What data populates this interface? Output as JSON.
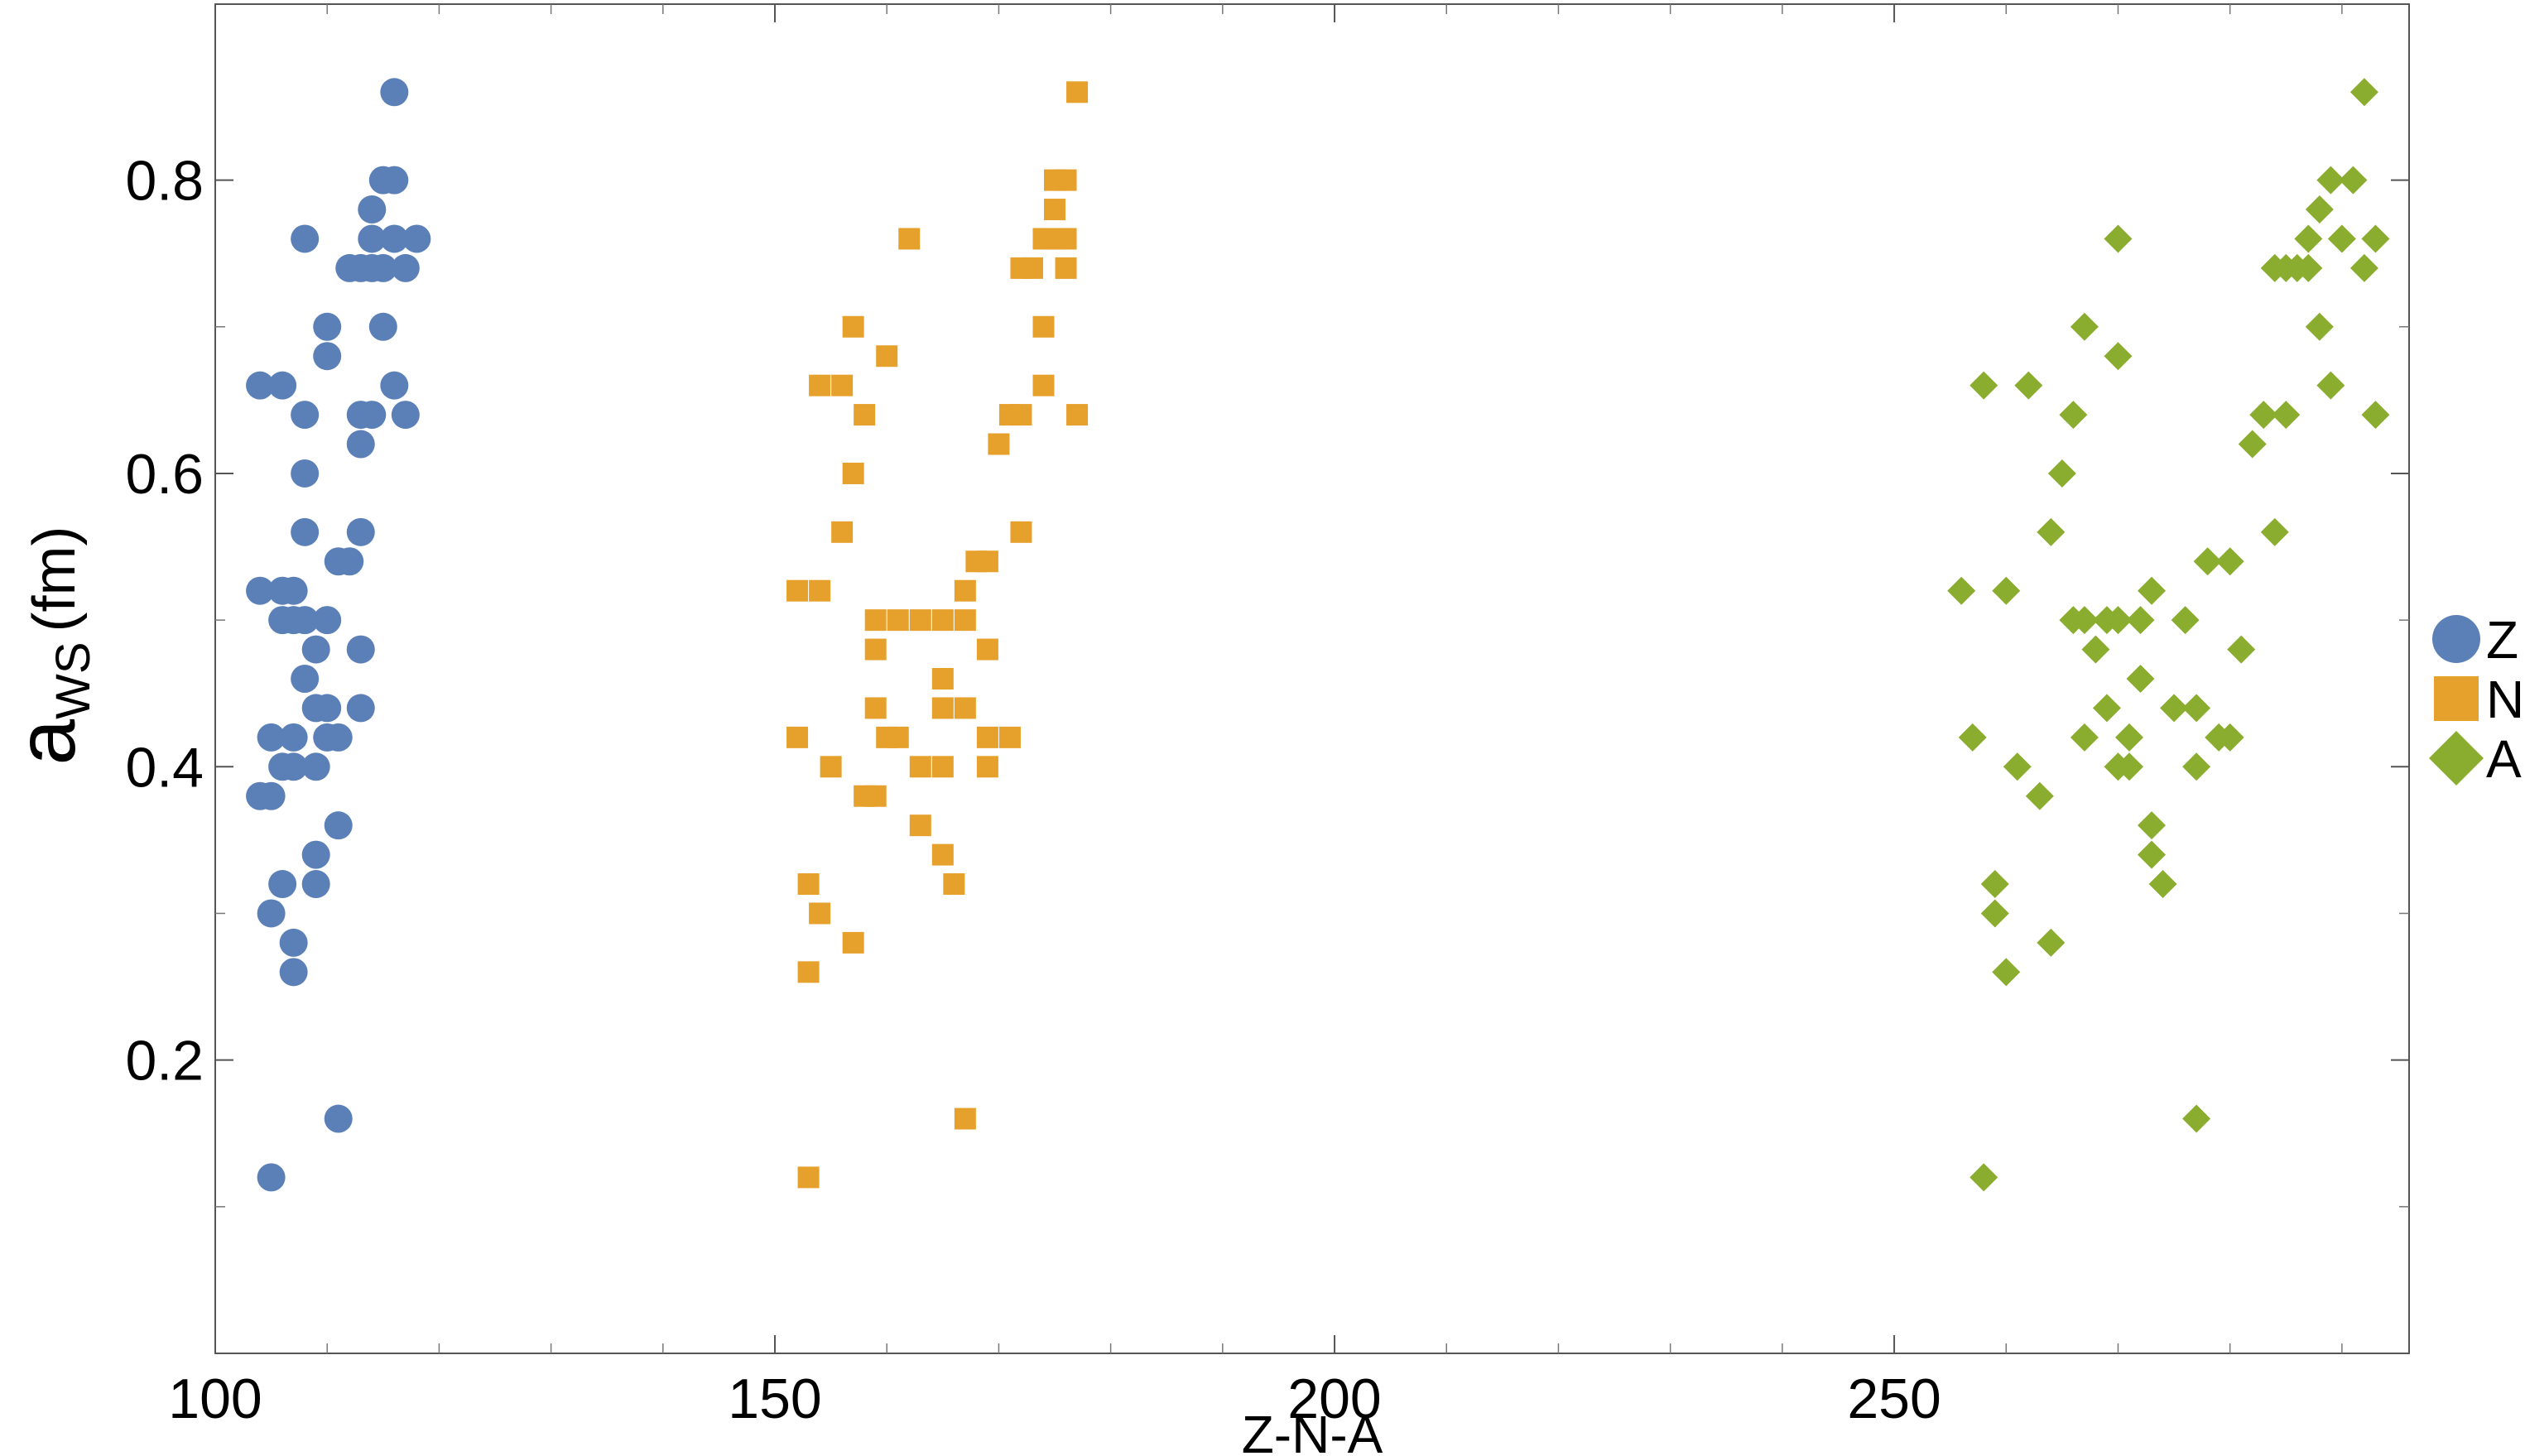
{
  "chart_data": {
    "type": "scatter",
    "title": "",
    "xlabel": "Z-N-A",
    "ylabel": {
      "main": "a",
      "sub": "WS",
      "unit": "(fm)"
    },
    "xlim": [
      100,
      296
    ],
    "ylim": [
      0,
      0.92
    ],
    "x_ticks": [
      100,
      150,
      200,
      250
    ],
    "x_minor_ticks": [
      110,
      120,
      130,
      140,
      160,
      170,
      180,
      190,
      210,
      220,
      230,
      240,
      260,
      270,
      280,
      290
    ],
    "y_ticks": [
      0.2,
      0.4,
      0.6,
      0.8
    ],
    "y_minor_ticks": [
      0.1,
      0.3,
      0.5,
      0.7
    ],
    "grid": false,
    "legend_position": "right",
    "series": [
      {
        "name": "Z",
        "color": "#5b80b8",
        "marker": "circle",
        "points": [
          [
            104,
            0.66
          ],
          [
            104,
            0.52
          ],
          [
            104,
            0.38
          ],
          [
            105,
            0.42
          ],
          [
            105,
            0.38
          ],
          [
            105,
            0.3
          ],
          [
            105,
            0.12
          ],
          [
            106,
            0.66
          ],
          [
            106,
            0.52
          ],
          [
            106,
            0.5
          ],
          [
            106,
            0.4
          ],
          [
            106,
            0.32
          ],
          [
            107,
            0.52
          ],
          [
            107,
            0.5
          ],
          [
            107,
            0.42
          ],
          [
            107,
            0.4
          ],
          [
            107,
            0.28
          ],
          [
            107,
            0.26
          ],
          [
            108,
            0.76
          ],
          [
            108,
            0.64
          ],
          [
            108,
            0.6
          ],
          [
            108,
            0.56
          ],
          [
            108,
            0.5
          ],
          [
            108,
            0.46
          ],
          [
            109,
            0.48
          ],
          [
            109,
            0.44
          ],
          [
            109,
            0.4
          ],
          [
            109,
            0.34
          ],
          [
            109,
            0.32
          ],
          [
            110,
            0.7
          ],
          [
            110,
            0.68
          ],
          [
            110,
            0.5
          ],
          [
            110,
            0.44
          ],
          [
            110,
            0.42
          ],
          [
            111,
            0.54
          ],
          [
            111,
            0.42
          ],
          [
            111,
            0.36
          ],
          [
            111,
            0.16
          ],
          [
            112,
            0.74
          ],
          [
            112,
            0.54
          ],
          [
            113,
            0.74
          ],
          [
            113,
            0.64
          ],
          [
            113,
            0.62
          ],
          [
            113,
            0.56
          ],
          [
            113,
            0.48
          ],
          [
            113,
            0.44
          ],
          [
            114,
            0.78
          ],
          [
            114,
            0.76
          ],
          [
            114,
            0.74
          ],
          [
            114,
            0.64
          ],
          [
            115,
            0.8
          ],
          [
            115,
            0.74
          ],
          [
            115,
            0.7
          ],
          [
            116,
            0.86
          ],
          [
            116,
            0.8
          ],
          [
            116,
            0.76
          ],
          [
            116,
            0.66
          ],
          [
            117,
            0.74
          ],
          [
            117,
            0.64
          ],
          [
            118,
            0.76
          ]
        ]
      },
      {
        "name": "N",
        "color": "#e6a02c",
        "marker": "square",
        "points": [
          [
            152,
            0.52
          ],
          [
            152,
            0.42
          ],
          [
            153,
            0.32
          ],
          [
            153,
            0.26
          ],
          [
            153,
            0.12
          ],
          [
            154,
            0.66
          ],
          [
            154,
            0.52
          ],
          [
            154,
            0.3
          ],
          [
            155,
            0.4
          ],
          [
            156,
            0.66
          ],
          [
            156,
            0.56
          ],
          [
            157,
            0.7
          ],
          [
            157,
            0.6
          ],
          [
            157,
            0.28
          ],
          [
            158,
            0.64
          ],
          [
            158,
            0.38
          ],
          [
            159,
            0.5
          ],
          [
            159,
            0.48
          ],
          [
            159,
            0.44
          ],
          [
            159,
            0.38
          ],
          [
            160,
            0.68
          ],
          [
            160,
            0.42
          ],
          [
            161,
            0.5
          ],
          [
            161,
            0.42
          ],
          [
            162,
            0.76
          ],
          [
            163,
            0.5
          ],
          [
            163,
            0.4
          ],
          [
            163,
            0.36
          ],
          [
            165,
            0.5
          ],
          [
            165,
            0.46
          ],
          [
            165,
            0.44
          ],
          [
            165,
            0.4
          ],
          [
            165,
            0.34
          ],
          [
            166,
            0.32
          ],
          [
            167,
            0.52
          ],
          [
            167,
            0.5
          ],
          [
            167,
            0.44
          ],
          [
            167,
            0.16
          ],
          [
            168,
            0.54
          ],
          [
            169,
            0.54
          ],
          [
            169,
            0.48
          ],
          [
            169,
            0.42
          ],
          [
            169,
            0.4
          ],
          [
            170,
            0.62
          ],
          [
            171,
            0.64
          ],
          [
            171,
            0.42
          ],
          [
            172,
            0.74
          ],
          [
            172,
            0.64
          ],
          [
            172,
            0.56
          ],
          [
            173,
            0.74
          ],
          [
            174,
            0.76
          ],
          [
            174,
            0.7
          ],
          [
            174,
            0.66
          ],
          [
            175,
            0.8
          ],
          [
            175,
            0.78
          ],
          [
            175,
            0.76
          ],
          [
            176,
            0.8
          ],
          [
            176,
            0.76
          ],
          [
            176,
            0.74
          ],
          [
            177,
            0.86
          ],
          [
            177,
            0.64
          ]
        ]
      },
      {
        "name": "A",
        "color": "#8bad2f",
        "marker": "diamond",
        "points": [
          [
            256,
            0.52
          ],
          [
            257,
            0.42
          ],
          [
            258,
            0.66
          ],
          [
            258,
            0.12
          ],
          [
            259,
            0.32
          ],
          [
            259,
            0.3
          ],
          [
            260,
            0.52
          ],
          [
            260,
            0.26
          ],
          [
            261,
            0.4
          ],
          [
            262,
            0.66
          ],
          [
            263,
            0.38
          ],
          [
            264,
            0.56
          ],
          [
            264,
            0.28
          ],
          [
            265,
            0.6
          ],
          [
            266,
            0.64
          ],
          [
            266,
            0.5
          ],
          [
            267,
            0.7
          ],
          [
            267,
            0.5
          ],
          [
            267,
            0.42
          ],
          [
            268,
            0.48
          ],
          [
            269,
            0.5
          ],
          [
            269,
            0.44
          ],
          [
            270,
            0.76
          ],
          [
            270,
            0.68
          ],
          [
            270,
            0.5
          ],
          [
            270,
            0.4
          ],
          [
            271,
            0.42
          ],
          [
            271,
            0.4
          ],
          [
            272,
            0.5
          ],
          [
            272,
            0.46
          ],
          [
            273,
            0.52
          ],
          [
            273,
            0.36
          ],
          [
            273,
            0.34
          ],
          [
            274,
            0.32
          ],
          [
            275,
            0.44
          ],
          [
            276,
            0.5
          ],
          [
            277,
            0.44
          ],
          [
            277,
            0.4
          ],
          [
            277,
            0.16
          ],
          [
            278,
            0.54
          ],
          [
            279,
            0.42
          ],
          [
            280,
            0.54
          ],
          [
            280,
            0.42
          ],
          [
            281,
            0.48
          ],
          [
            282,
            0.62
          ],
          [
            283,
            0.64
          ],
          [
            284,
            0.74
          ],
          [
            284,
            0.56
          ],
          [
            285,
            0.74
          ],
          [
            285,
            0.64
          ],
          [
            286,
            0.74
          ],
          [
            287,
            0.76
          ],
          [
            287,
            0.74
          ],
          [
            288,
            0.78
          ],
          [
            288,
            0.7
          ],
          [
            289,
            0.8
          ],
          [
            289,
            0.66
          ],
          [
            290,
            0.76
          ],
          [
            291,
            0.8
          ],
          [
            292,
            0.86
          ],
          [
            292,
            0.74
          ],
          [
            293,
            0.76
          ],
          [
            293,
            0.64
          ]
        ]
      }
    ]
  }
}
